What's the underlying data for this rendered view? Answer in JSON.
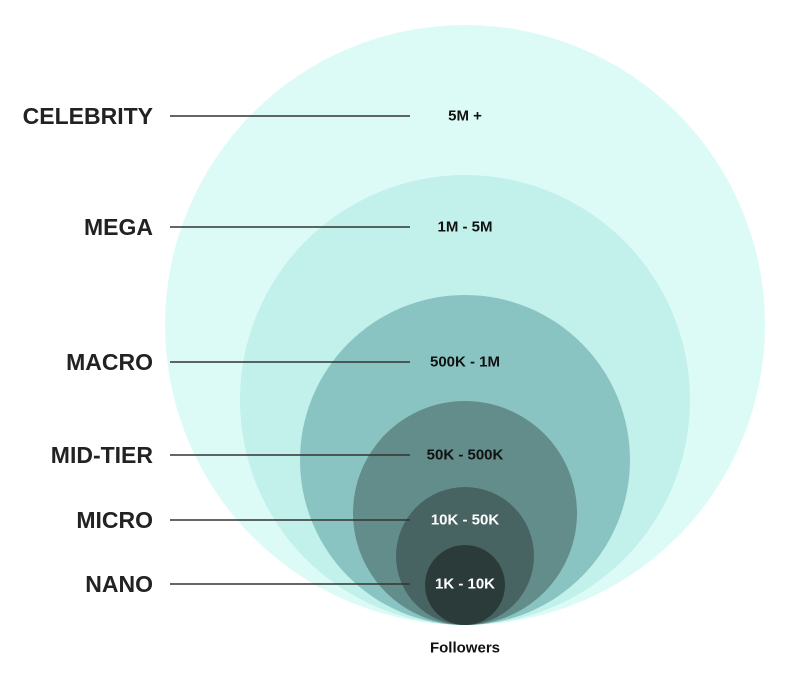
{
  "tiers": [
    {
      "id": "celebrity",
      "name": "CELEBRITY",
      "range": "5M +",
      "fill": "#dcfbf7",
      "text_color": "#111111"
    },
    {
      "id": "mega",
      "name": "MEGA",
      "range": "1M - 5M",
      "fill": "#c2f0eb",
      "text_color": "#111111"
    },
    {
      "id": "macro",
      "name": "MACRO",
      "range": "500K - 1M",
      "fill": "#8ac4c2",
      "text_color": "#111111"
    },
    {
      "id": "mid-tier",
      "name": "MID-TIER",
      "range": "50K - 500K",
      "fill": "#638d8b",
      "text_color": "#111111"
    },
    {
      "id": "micro",
      "name": "MICRO",
      "range": "10K - 50K",
      "fill": "#476462",
      "text_color": "#ffffff"
    },
    {
      "id": "nano",
      "name": "NANO",
      "range": "1K - 10K",
      "fill": "#2b3b3a",
      "text_color": "#ffffff"
    }
  ],
  "footer_label": "Followers"
}
